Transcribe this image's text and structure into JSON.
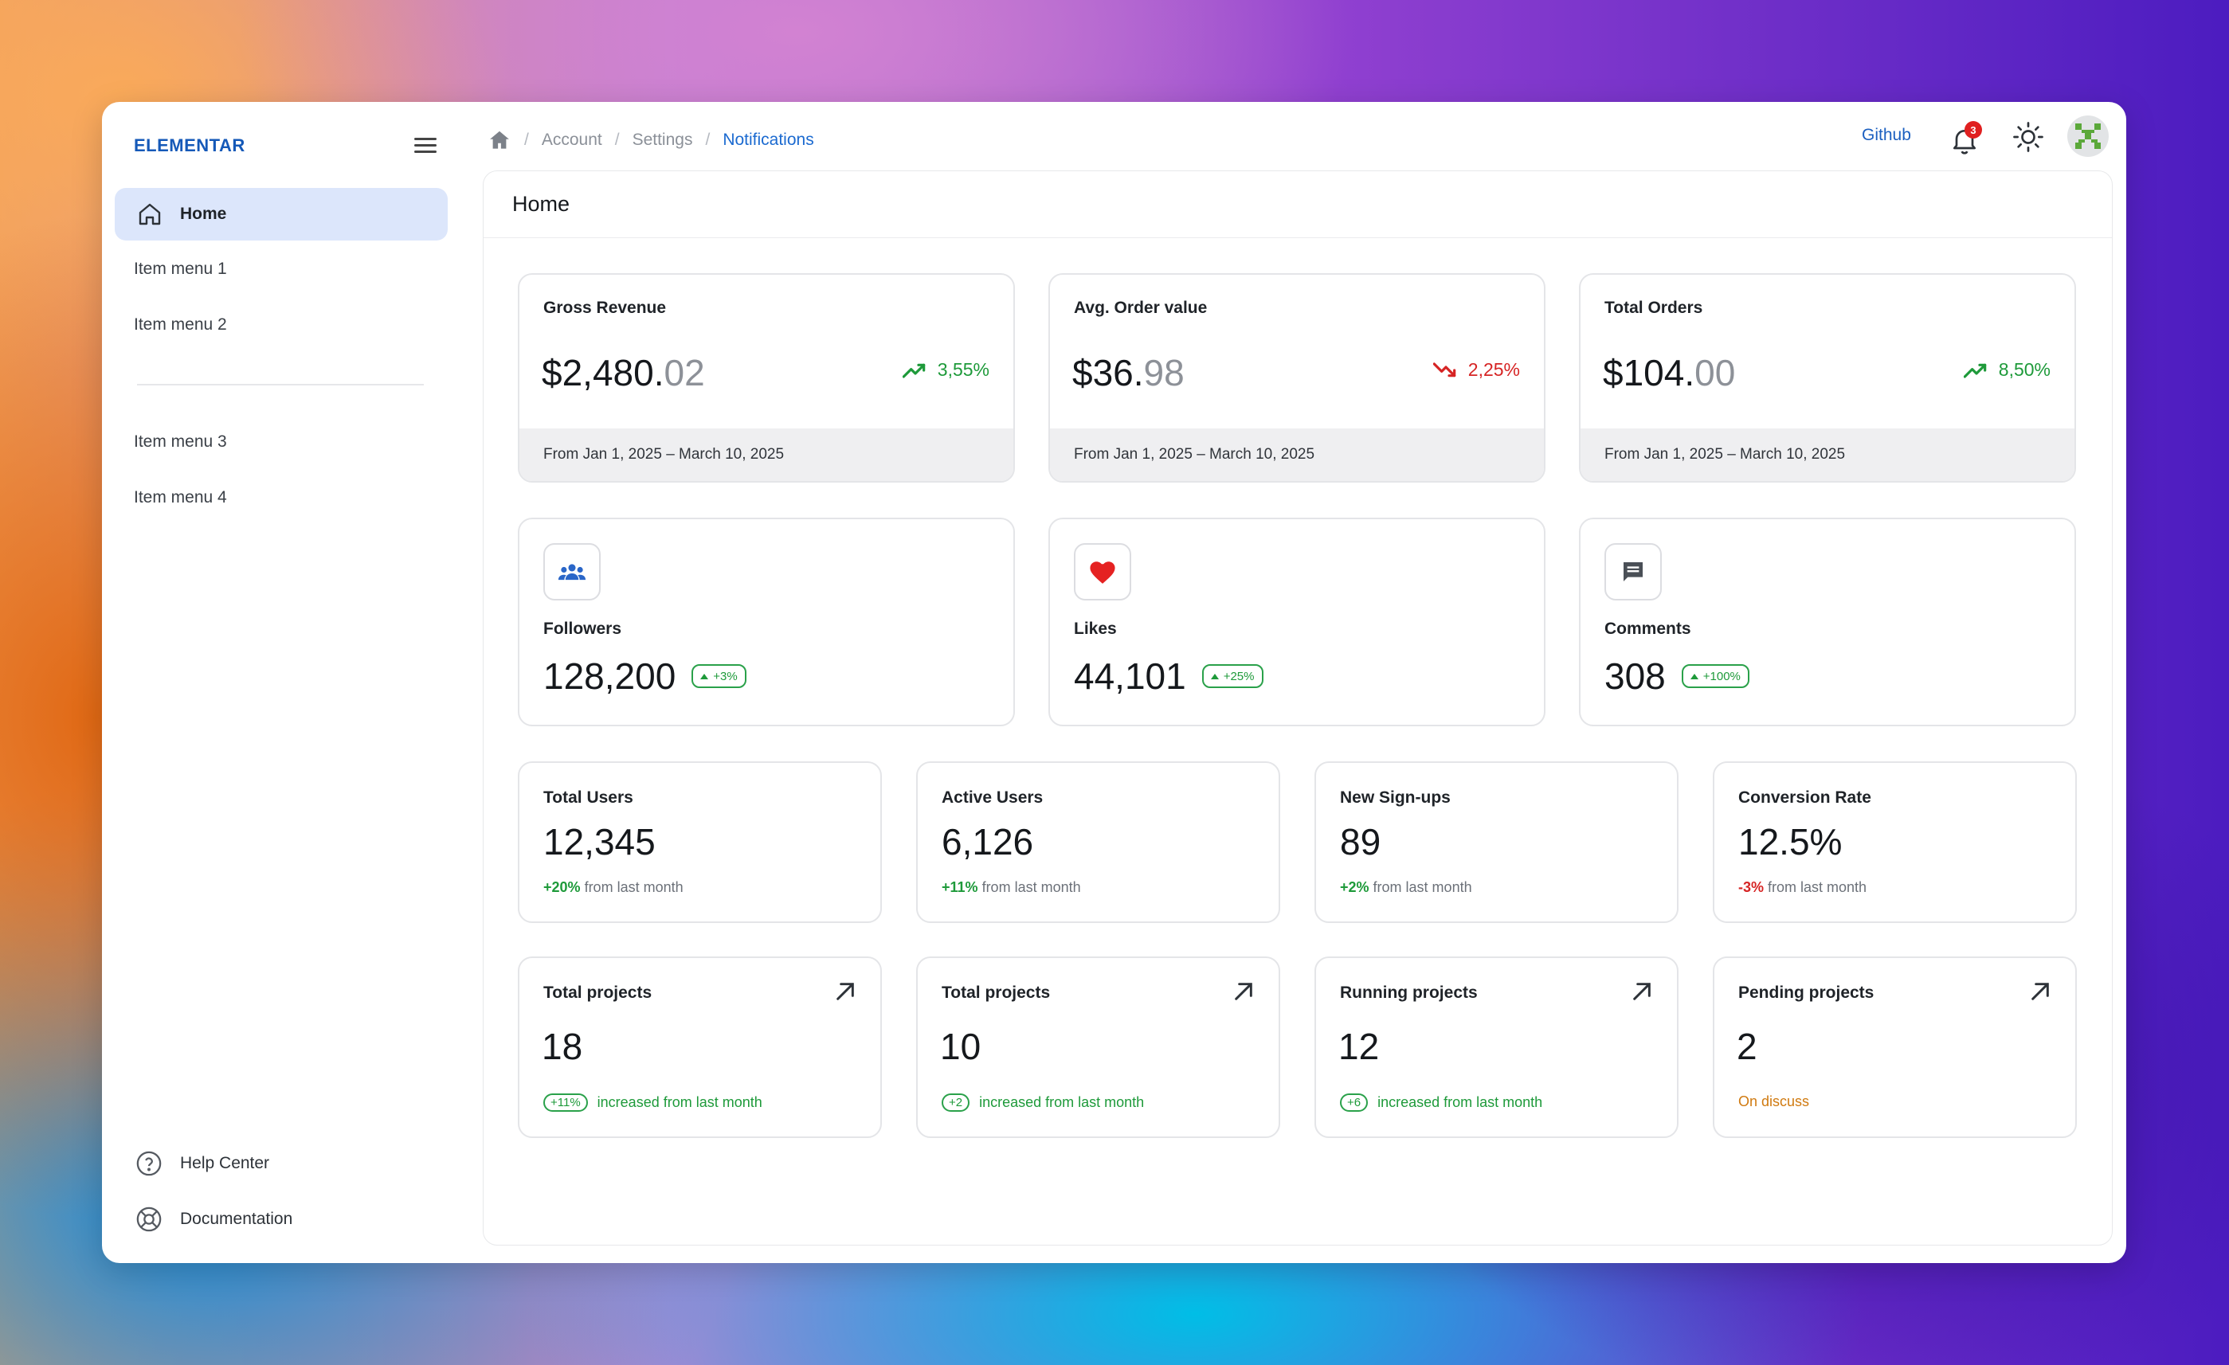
{
  "app": {
    "name": "ELEMENTAR"
  },
  "sidebar": {
    "home_label": "Home",
    "items": [
      "Item menu 1",
      "Item menu 2",
      "Item menu 3",
      "Item menu 4"
    ],
    "bottom": [
      {
        "label": "Help Center",
        "icon": "help-circle-icon"
      },
      {
        "label": "Documentation",
        "icon": "lifebuoy-icon"
      }
    ]
  },
  "header": {
    "breadcrumbs": [
      "Account",
      "Settings",
      "Notifications"
    ],
    "github_label": "Github",
    "notification_count": "3"
  },
  "main": {
    "title": "Home",
    "revenue_cards": [
      {
        "title": "Gross Revenue",
        "value": "$2,480.",
        "cents": "02",
        "change": "3,55%",
        "trend": "up",
        "period": "From Jan 1, 2025 – March 10, 2025"
      },
      {
        "title": "Avg. Order value",
        "value": "$36.",
        "cents": "98",
        "change": "2,25%",
        "trend": "down",
        "period": "From Jan 1, 2025 – March 10, 2025"
      },
      {
        "title": "Total Orders",
        "value": "$104.",
        "cents": "00",
        "change": "8,50%",
        "trend": "up",
        "period": "From Jan 1, 2025 – March 10, 2025"
      }
    ],
    "social_cards": [
      {
        "title": "Followers",
        "value": "128,200",
        "change": "+3%",
        "icon": "group-icon"
      },
      {
        "title": "Likes",
        "value": "44,101",
        "change": "+25%",
        "icon": "heart-icon"
      },
      {
        "title": "Comments",
        "value": "308",
        "change": "+100%",
        "icon": "comment-icon"
      }
    ],
    "stat_cards": [
      {
        "title": "Total Users",
        "value": "12,345",
        "change": "+20%",
        "note": "from last month",
        "trend": "up"
      },
      {
        "title": "Active Users",
        "value": "6,126",
        "change": "+11%",
        "note": "from last month",
        "trend": "up"
      },
      {
        "title": "New Sign-ups",
        "value": "89",
        "change": "+2%",
        "note": "from last month",
        "trend": "up"
      },
      {
        "title": "Conversion Rate",
        "value": "12.5%",
        "change": "-3%",
        "note": "from last month",
        "trend": "down"
      }
    ],
    "project_cards": [
      {
        "title": "Total projects",
        "value": "18",
        "chip": "+11%",
        "note": "increased from last month"
      },
      {
        "title": "Total projects",
        "value": "10",
        "chip": "+2",
        "note": "increased from last month"
      },
      {
        "title": "Running projects",
        "value": "12",
        "chip": "+6",
        "note": "increased from last month"
      },
      {
        "title": "Pending projects",
        "value": "2",
        "chip": "",
        "note": "On discuss"
      }
    ]
  },
  "colors": {
    "accent": "#1b6ad0",
    "positive": "#1e9a3a",
    "negative": "#d62424",
    "pending": "#d07a10",
    "home_bg": "#dce6fb"
  }
}
